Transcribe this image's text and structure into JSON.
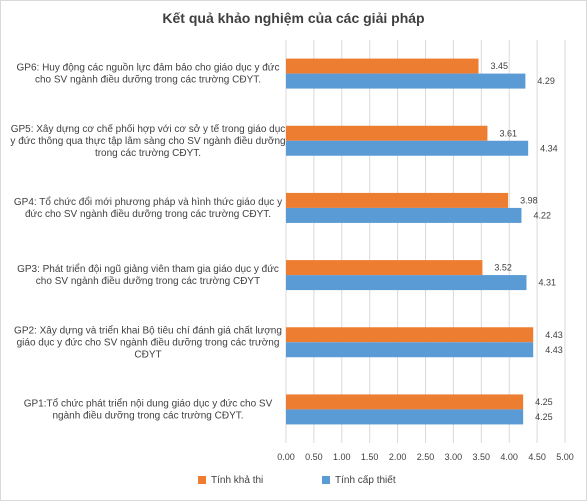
{
  "chart_data": {
    "type": "bar",
    "orientation": "horizontal",
    "title": "Kết quả khảo nghiệm của các giải pháp",
    "categories": [
      "GP6:  Huy động các nguồn lực đảm bảo cho giáo dục y đức cho SV ngành điều dưỡng trong các trường CĐYT.",
      "GP5: Xây dựng cơ chế phối hợp với cơ sở y tế trong giáo dục y đức thông qua thực tập lâm sàng cho SV ngành điều dưỡng trong các trường CĐYT.",
      "GP4: Tổ chức đổi mới phương pháp và hình thức giáo dục y đức cho SV ngành điều dưỡng trong các trường CĐYT.",
      "GP3: Phát triển đội ngũ giảng viên tham gia giáo dục y đức cho SV ngành điều dưỡng trong các trường CĐYT",
      "GP2: Xây dựng và triển khai Bộ tiêu chí đánh giá chất lượng giáo dục y đức cho SV ngành điều dưỡng trong các trường CĐYT",
      "GP1:Tổ chức phát triển nội dung giáo dục y đức cho SV ngành điều dưỡng trong các trường CĐYT."
    ],
    "category_lines": [
      [
        "GP6:  Huy động các nguồn lực đảm bảo cho giáo dục y đức",
        "cho SV ngành điều dưỡng trong các trường CĐYT."
      ],
      [
        "GP5: Xây dựng cơ chế phối hợp với cơ sở y tế trong giáo dục",
        "y đức thông qua thực tập lâm sàng cho SV ngành điều dưỡng",
        "trong các trường CĐYT."
      ],
      [
        "GP4: Tổ chức đổi mới phương pháp và hình thức giáo dục y",
        "đức cho SV ngành điều dưỡng trong các trường CĐYT."
      ],
      [
        "GP3: Phát triển đội ngũ giảng viên tham gia giáo dục y đức",
        "cho SV ngành điều dưỡng trong các trường CĐYT"
      ],
      [
        "GP2: Xây dựng và triển khai Bộ tiêu chí đánh giá chất lượng",
        "giáo dục y đức cho SV ngành điều dưỡng trong các trường",
        "CĐYT"
      ],
      [
        "GP1:Tổ chức phát triển nội dung giáo dục y đức cho SV",
        "ngành điều dưỡng trong các trường CĐYT."
      ]
    ],
    "series": [
      {
        "name": "Tính khả thi",
        "color": "#ed7d31",
        "values": [
          3.45,
          3.61,
          3.98,
          3.52,
          4.43,
          4.25
        ],
        "labels": [
          "3.45",
          "3.61",
          "3.98",
          "3.52",
          "4.43",
          "4.25"
        ]
      },
      {
        "name": "Tính cấp thiết",
        "color": "#5b9bd5",
        "values": [
          4.29,
          4.34,
          4.22,
          4.31,
          4.43,
          4.25
        ],
        "labels": [
          "4.29",
          "4.34",
          "4.22",
          "4.31",
          "4.43",
          "4.25"
        ]
      }
    ],
    "xlim": [
      0,
      5
    ],
    "xticks": [
      "0.00",
      "0.50",
      "1.00",
      "1.50",
      "2.00",
      "2.50",
      "3.00",
      "3.50",
      "4.00",
      "4.50",
      "5.00"
    ],
    "grid": true,
    "legend_position": "bottom",
    "xlabel": "",
    "ylabel": ""
  }
}
